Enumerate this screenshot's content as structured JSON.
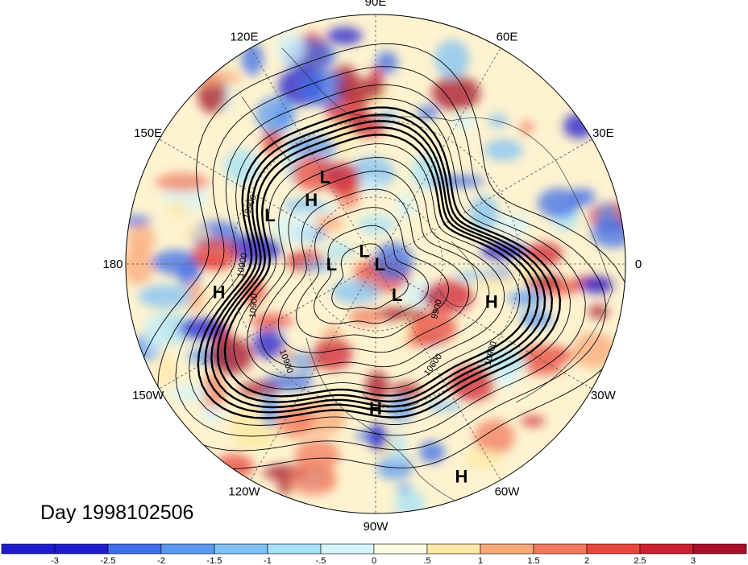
{
  "title": "Day 1998102506",
  "longitude_labels": [
    {
      "text": "90E",
      "lon": 90
    },
    {
      "text": "60E",
      "lon": 60
    },
    {
      "text": "30E",
      "lon": 30
    },
    {
      "text": "0",
      "lon": 0
    },
    {
      "text": "30W",
      "lon": -30
    },
    {
      "text": "60W",
      "lon": -60
    },
    {
      "text": "90W",
      "lon": -90
    },
    {
      "text": "120W",
      "lon": -120
    },
    {
      "text": "150W",
      "lon": -150
    },
    {
      "text": "180",
      "lon": 180
    },
    {
      "text": "150E",
      "lon": 150
    },
    {
      "text": "120E",
      "lon": 120
    }
  ],
  "pressure_centers": [
    {
      "text": "L",
      "lon": 120,
      "lat": 46
    },
    {
      "text": "H",
      "lon": 135,
      "lat": 50
    },
    {
      "text": "L",
      "lon": 155,
      "lat": 40
    },
    {
      "text": "H",
      "lon": -170,
      "lat": 25
    },
    {
      "text": "L",
      "lon": 130,
      "lat": 82
    },
    {
      "text": "L",
      "lon": 180,
      "lat": 70
    },
    {
      "text": "L",
      "lon": 0,
      "lat": 88
    },
    {
      "text": "L",
      "lon": -55,
      "lat": 73
    },
    {
      "text": "H",
      "lon": -18,
      "lat": 38
    },
    {
      "text": "H",
      "lon": -90,
      "lat": 30
    },
    {
      "text": "H",
      "lon": -68,
      "lat": 5
    }
  ],
  "contour_labels": [
    "10900",
    "10900",
    "10900",
    "9900",
    "10600",
    "10900",
    "10900"
  ],
  "colorbar": {
    "ticks": [
      "-3",
      "-2.5",
      "-2",
      "-1.5",
      "-1",
      "-.5",
      "0",
      ".5",
      "1",
      "1.5",
      "2",
      "2.5",
      "3"
    ],
    "colors": [
      "#1f1ccf",
      "#3f6ee8",
      "#5b9af0",
      "#7fc0f5",
      "#a6e2f7",
      "#d4f4fa",
      "#fffbe0",
      "#fde8a6",
      "#f9a878",
      "#f27a5e",
      "#e8483f",
      "#cf2030",
      "#a60f26"
    ]
  }
}
